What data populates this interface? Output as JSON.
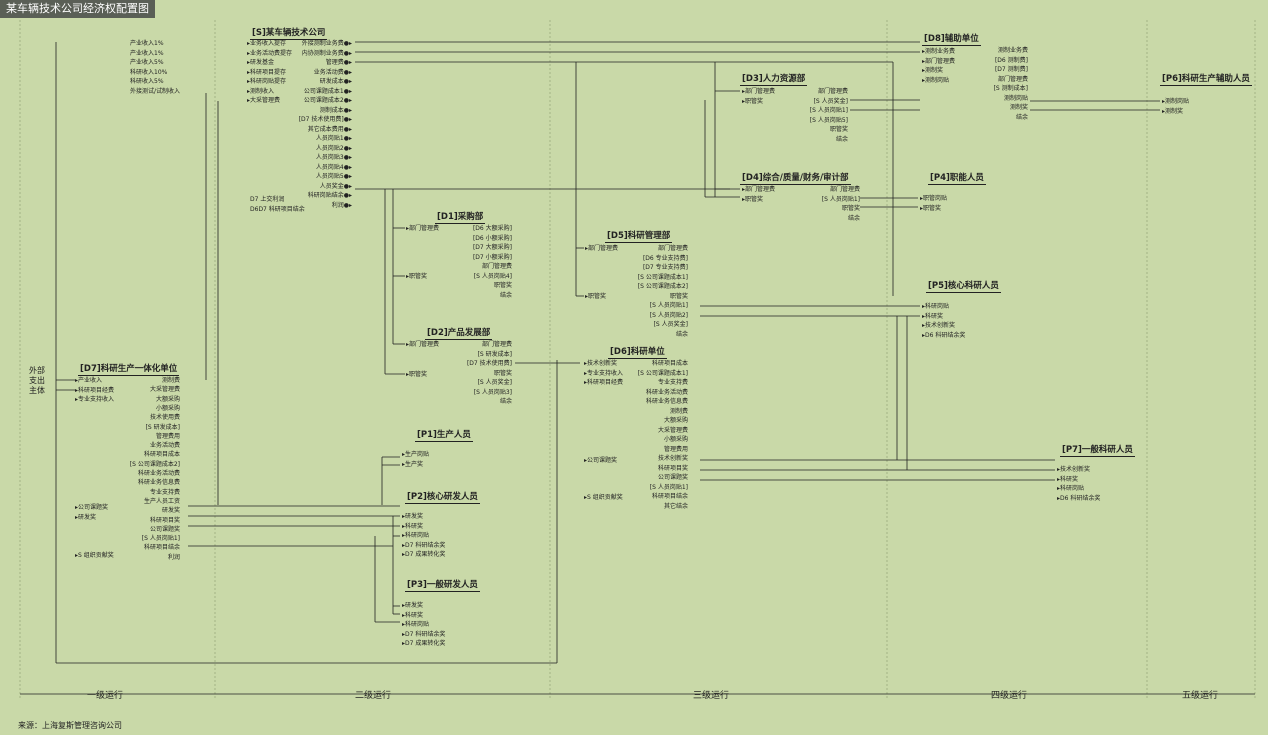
{
  "title": "某车辆技术公司经济权配置图",
  "external": "外部\n支出\n主体",
  "source": "来源：上海复斯管理咨询公司",
  "stages": [
    "一级运行",
    "二级运行",
    "三级运行",
    "四级运行",
    "五级运行"
  ],
  "units": {
    "S": {
      "title": "[S]某车辆技术公司",
      "left": [
        "业务收入提存",
        "业务活动费提存",
        "研发基金",
        "科研项目提存",
        "科研岗贴提存",
        "测制收入",
        "大采管理费"
      ],
      "right": [
        "外接测制业务费",
        "内协测制业务费",
        "管理费",
        "业务活动费",
        "研发成本",
        "公司课题成本1",
        "公司课题成本2",
        "测制成本",
        "[D7 技术使用费]",
        "其它成本费用",
        "人员岗贴1",
        "人员岗贴2",
        "人员岗贴3",
        "人员岗贴4",
        "人员岗贴5",
        "人员奖金",
        "科研岗贴结余",
        "利润"
      ],
      "bottom": [
        "D7 上交利润",
        "D6D7 科研项目结余"
      ]
    },
    "inflows": [
      "产业收入1%",
      "产业收入1%",
      "产业收入5%",
      "科研收入10%",
      "科研收入5%",
      "外接测试/试制收入"
    ],
    "D8": {
      "title": "[D8]辅助单位",
      "left": [
        "测制业务费",
        "部门管理费",
        "测制奖",
        "测制岗贴"
      ],
      "right": [
        "测制业务费",
        "[D6 测制费]",
        "[D7 测制费]",
        "部门管理费",
        "[S 测制成本]",
        "测制岗贴",
        "测制奖",
        "结余"
      ]
    },
    "P6": {
      "title": "[P6]科研生产辅助人员",
      "items": [
        "测制岗贴",
        "测制奖"
      ]
    },
    "D3": {
      "title": "[D3]人力资源部",
      "left": [
        "部门管理费",
        "职管奖"
      ],
      "right": [
        "部门管理费",
        "[S 人员奖金]",
        "[S 人员岗贴1]",
        "[S 人员岗贴5]",
        "职管奖",
        "结余"
      ]
    },
    "D4": {
      "title": "[D4]综合/质量/财务/审计部",
      "left": [
        "部门管理费",
        "职管奖"
      ],
      "right": [
        "部门管理费",
        "[S 人员岗贴1]",
        "职管奖",
        "结余"
      ]
    },
    "P4": {
      "title": "[P4]职能人员",
      "items": [
        "职管岗贴",
        "职管奖"
      ]
    },
    "D1": {
      "title": "[D1]采购部",
      "left": [
        "部门管理费",
        "职管奖"
      ],
      "right": [
        "[D6 大额采购]",
        "[D6 小额采购]",
        "[D7 大额采购]",
        "[D7 小额采购]",
        "部门管理费",
        "[S 人员岗贴4]",
        "职管奖",
        "结余"
      ]
    },
    "D5": {
      "title": "[D5]科研管理部",
      "left": [
        "部门管理费",
        "职管奖"
      ],
      "right": [
        "部门管理费",
        "[D6 专业支持费]",
        "[D7 专业支持费]",
        "[S 公司课题成本1]",
        "[S 公司课题成本2]",
        "职管奖",
        "[S 人员岗贴1]",
        "[S 人员岗贴2]",
        "[S 人员奖金]",
        "结余"
      ]
    },
    "P5": {
      "title": "[P5]核心科研人员",
      "items": [
        "科研岗贴",
        "科研奖",
        "技术创新奖",
        "D6 科研结余奖"
      ]
    },
    "D2": {
      "title": "[D2]产品发展部",
      "left": [
        "部门管理费",
        "职管奖"
      ],
      "right": [
        "部门管理费",
        "[S 研发成本]",
        "[D7 技术使用费]",
        "职管奖",
        "[S 人员奖金]",
        "[S 人员岗贴3]",
        "结余"
      ]
    },
    "D6": {
      "title": "[D6]科研单位",
      "left": [
        "技术创新奖",
        "专业支持收入",
        "科研项目经费",
        "公司课题奖",
        "S 组织贡献奖"
      ],
      "right": [
        "科研项目成本",
        "[S 公司课题成本1]",
        "专业支持费",
        "科研业务活动费",
        "科研业务信息费",
        "测制费",
        "大额采购",
        "大采管理费",
        "小额采购",
        "管理费用",
        "技术创新奖",
        "科研项目奖",
        "公司课题奖",
        "[S 人员岗贴1]",
        "科研项目结余",
        "其它结余"
      ]
    },
    "D7": {
      "title": "[D7]科研生产一体化单位",
      "left": [
        "产业收入",
        "科研项目经费",
        "专业支持收入",
        "公司课题奖",
        "研发奖",
        "S 组织贡献奖"
      ],
      "right": [
        "测制费",
        "大采管理费",
        "大额采购",
        "小额采购",
        "技术使用费",
        "[S 研发成本]",
        "管理费用",
        "业务活动费",
        "科研项目成本",
        "[S 公司课题成本2]",
        "科研业务活动费",
        "科研业务信息费",
        "专业支持费",
        "生产人员工资",
        "研发奖",
        "科研项目奖",
        "公司课题奖",
        "[S 人员岗贴1]",
        "科研项目结余",
        "利润"
      ]
    },
    "P1": {
      "title": "[P1]生产人员",
      "items": [
        "生产岗贴",
        "生产奖"
      ]
    },
    "P2": {
      "title": "[P2]核心研发人员",
      "items": [
        "研发奖",
        "科研奖",
        "科研岗贴",
        "D7 科研结余奖",
        "D7 成果转化奖"
      ]
    },
    "P3": {
      "title": "[P3]一般研发人员",
      "items": [
        "研发奖",
        "科研奖",
        "科研岗贴",
        "D7 科研结余奖",
        "D7 成果转化奖"
      ]
    },
    "P7": {
      "title": "[P7]一般科研人员",
      "items": [
        "技术创新奖",
        "科研奖",
        "科研岗贴",
        "D6 科研结余奖"
      ]
    }
  }
}
